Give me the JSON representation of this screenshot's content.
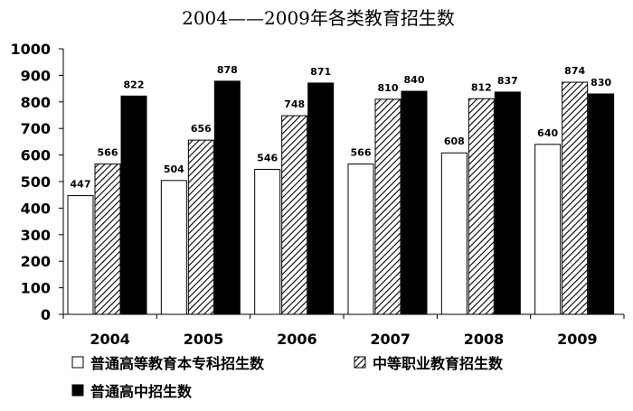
{
  "chart_data": {
    "type": "bar",
    "title": "2004——2009年各类教育招生数",
    "categories": [
      "2004",
      "2005",
      "2006",
      "2007",
      "2008",
      "2009"
    ],
    "series": [
      {
        "name": "普通高等教育本专科招生数",
        "values": [
          447,
          504,
          546,
          566,
          608,
          640
        ],
        "fill": "white"
      },
      {
        "name": "中等职业教育招生数",
        "values": [
          566,
          656,
          748,
          810,
          812,
          874
        ],
        "fill": "hatch"
      },
      {
        "name": "普通高中招生数",
        "values": [
          822,
          878,
          871,
          840,
          837,
          830
        ],
        "fill": "black"
      }
    ],
    "ylim": [
      0,
      1000
    ],
    "yticks": [
      "0",
      "100",
      "200",
      "300",
      "400",
      "500",
      "600",
      "700",
      "800",
      "900",
      "1000"
    ],
    "grid": false,
    "legend_position": "bottom"
  }
}
